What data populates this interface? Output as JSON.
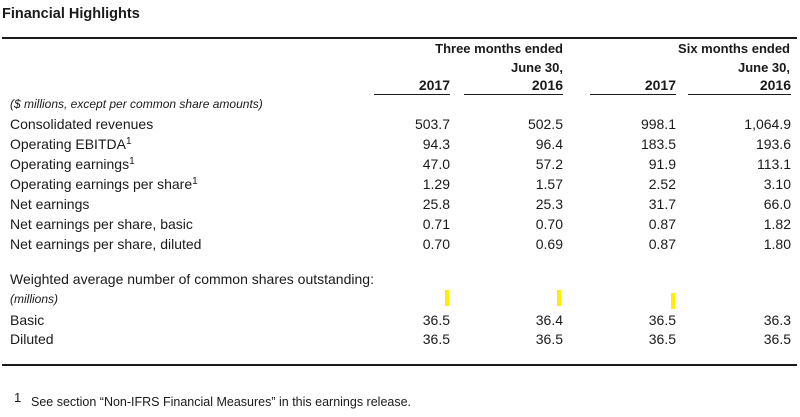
{
  "title": "Financial Highlights",
  "header": {
    "three_months": {
      "line1": "Three months ended",
      "line2": "June 30,"
    },
    "six_months": {
      "line1": "Six months ended",
      "line2": "June 30,"
    },
    "years": [
      "2017",
      "2016",
      "2017",
      "2016"
    ]
  },
  "units_note": "($ millions, except per common share amounts)",
  "rows": [
    {
      "label": "Consolidated revenues",
      "sup": "",
      "values": [
        "503.7",
        "502.5",
        "998.1",
        "1,064.9"
      ]
    },
    {
      "label": "Operating EBITDA",
      "sup": "1",
      "values": [
        "94.3",
        "96.4",
        "183.5",
        "193.6"
      ]
    },
    {
      "label": "Operating earnings",
      "sup": "1",
      "values": [
        "47.0",
        "57.2",
        "91.9",
        "113.1"
      ]
    },
    {
      "label": "Operating earnings per share",
      "sup": "1",
      "values": [
        "1.29",
        "1.57",
        "2.52",
        "3.10"
      ]
    },
    {
      "label": "Net earnings",
      "sup": "",
      "values": [
        "25.8",
        "25.3",
        "31.7",
        "66.0"
      ]
    },
    {
      "label": "Net earnings per share, basic",
      "sup": "",
      "values": [
        "0.71",
        "0.70",
        "0.87",
        "1.82"
      ]
    },
    {
      "label": "Net earnings per share, diluted",
      "sup": "",
      "values": [
        "0.70",
        "0.69",
        "0.87",
        "1.80"
      ]
    }
  ],
  "shares_section": {
    "heading": "Weighted average number of common shares outstanding:",
    "unit": "(millions)",
    "rows": [
      {
        "label": "Basic",
        "values": [
          "36.5",
          "36.4",
          "36.5",
          "36.3"
        ]
      },
      {
        "label": "Diluted",
        "values": [
          "36.5",
          "36.5",
          "36.5",
          "36.5"
        ]
      }
    ]
  },
  "footnote": {
    "number": "1",
    "text": "See section “Non-IFRS Financial Measures” in this earnings release."
  },
  "colors": {
    "text": "#1a1a1a",
    "highlight": "#ffee00"
  }
}
